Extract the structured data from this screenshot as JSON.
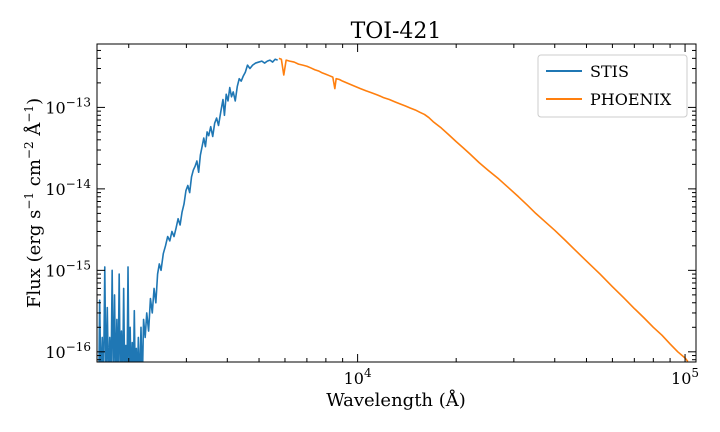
{
  "chart_data": {
    "type": "line",
    "title": "TOI-421",
    "xlabel": "Wavelength (Å)",
    "ylabel_parts": {
      "prefix": "Flux (erg s",
      "exp1": "−1",
      "mid1": " cm",
      "exp2": "−2",
      "mid2": " Å",
      "exp3": "−1",
      "suffix": ")"
    },
    "x_scale": "log",
    "y_scale": "log",
    "xlim": [
      1600,
      108000
    ],
    "ylim": [
      7.5e-17,
      6e-13
    ],
    "x_ticks": [
      {
        "value": 10000,
        "base": "10",
        "exp": "4"
      },
      {
        "value": 100000,
        "base": "10",
        "exp": "5"
      }
    ],
    "y_ticks": [
      {
        "value": 1e-16,
        "base": "10",
        "exp": "−16"
      },
      {
        "value": 1e-15,
        "base": "10",
        "exp": "−15"
      },
      {
        "value": 1e-14,
        "base": "10",
        "exp": "−14"
      },
      {
        "value": 1e-13,
        "base": "10",
        "exp": "−13"
      }
    ],
    "grid": false,
    "legend": {
      "position": "top-right"
    },
    "series": [
      {
        "name": "STIS",
        "color": "#1f77b4",
        "points": [
          [
            1620,
            3e-17
          ],
          [
            1630,
            4.3e-16
          ],
          [
            1645,
            2e-17
          ],
          [
            1660,
            1.5e-16
          ],
          [
            1675,
            3e-17
          ],
          [
            1690,
            1.1e-15
          ],
          [
            1705,
            2e-17
          ],
          [
            1720,
            3.5e-16
          ],
          [
            1735,
            2.5e-17
          ],
          [
            1750,
            1.5e-16
          ],
          [
            1765,
            2e-17
          ],
          [
            1780,
            1e-15
          ],
          [
            1795,
            3e-17
          ],
          [
            1810,
            5e-16
          ],
          [
            1825,
            2e-17
          ],
          [
            1840,
            2.5e-16
          ],
          [
            1855,
            2.5e-17
          ],
          [
            1870,
            9e-16
          ],
          [
            1885,
            3e-17
          ],
          [
            1900,
            1.8e-16
          ],
          [
            1915,
            3e-17
          ],
          [
            1930,
            6e-16
          ],
          [
            1945,
            3e-17
          ],
          [
            1960,
            1.2e-16
          ],
          [
            1975,
            2.5e-17
          ],
          [
            1990,
            1.1e-15
          ],
          [
            2005,
            4e-17
          ],
          [
            2020,
            2e-16
          ],
          [
            2035,
            3e-17
          ],
          [
            2050,
            1.3e-16
          ],
          [
            2065,
            3e-17
          ],
          [
            2080,
            3.2e-16
          ],
          [
            2095,
            3.5e-17
          ],
          [
            2110,
            1.1e-16
          ],
          [
            2125,
            2.5e-17
          ],
          [
            2140,
            1.5e-16
          ],
          [
            2160,
            3e-17
          ],
          [
            2180,
            2e-16
          ],
          [
            2200,
            4e-17
          ],
          [
            2220,
            2.5e-16
          ],
          [
            2245,
            1.5e-16
          ],
          [
            2270,
            3e-16
          ],
          [
            2300,
            1.8e-16
          ],
          [
            2330,
            4.5e-16
          ],
          [
            2360,
            3e-16
          ],
          [
            2390,
            6e-16
          ],
          [
            2420,
            4e-16
          ],
          [
            2450,
            9e-16
          ],
          [
            2480,
            1.2e-15
          ],
          [
            2510,
            1e-15
          ],
          [
            2550,
            1.6e-15
          ],
          [
            2590,
            2e-15
          ],
          [
            2630,
            2.6e-15
          ],
          [
            2670,
            2.3e-15
          ],
          [
            2710,
            3e-15
          ],
          [
            2750,
            2.6e-15
          ],
          [
            2790,
            3.3e-15
          ],
          [
            2830,
            4.3e-15
          ],
          [
            2870,
            3.6e-15
          ],
          [
            2910,
            5.2e-15
          ],
          [
            2950,
            6.5e-15
          ],
          [
            2990,
            9.5e-15
          ],
          [
            3030,
            1.1e-14
          ],
          [
            3070,
            9e-15
          ],
          [
            3110,
            1.4e-14
          ],
          [
            3150,
            1.7e-14
          ],
          [
            3190,
            1.9e-14
          ],
          [
            3230,
            2.2e-14
          ],
          [
            3270,
            1.6e-14
          ],
          [
            3310,
            2.6e-14
          ],
          [
            3350,
            3.3e-14
          ],
          [
            3390,
            4.2e-14
          ],
          [
            3430,
            3.3e-14
          ],
          [
            3470,
            5e-14
          ],
          [
            3510,
            4.5e-14
          ],
          [
            3560,
            5.8e-14
          ],
          [
            3610,
            4.4e-14
          ],
          [
            3660,
            6.4e-14
          ],
          [
            3710,
            7.4e-14
          ],
          [
            3760,
            6e-14
          ],
          [
            3820,
            8.8e-14
          ],
          [
            3880,
            1.25e-13
          ],
          [
            3920,
            8e-14
          ],
          [
            3970,
            1.45e-13
          ],
          [
            4020,
            1.2e-13
          ],
          [
            4070,
            1.75e-13
          ],
          [
            4120,
            1.35e-13
          ],
          [
            4170,
            1.55e-13
          ],
          [
            4230,
            1.2e-13
          ],
          [
            4290,
            1.8e-13
          ],
          [
            4350,
            2.25e-13
          ],
          [
            4410,
            2.1e-13
          ],
          [
            4470,
            2.4e-13
          ],
          [
            4540,
            2.7e-13
          ],
          [
            4610,
            3.3e-13
          ],
          [
            4690,
            3e-13
          ],
          [
            4780,
            3.3e-13
          ],
          [
            4880,
            3.5e-13
          ],
          [
            4990,
            3.6e-13
          ],
          [
            5100,
            3.7e-13
          ],
          [
            5200,
            3.5e-13
          ],
          [
            5300,
            3.7e-13
          ],
          [
            5400,
            3.8e-13
          ],
          [
            5500,
            3.6e-13
          ],
          [
            5600,
            3.9e-13
          ],
          [
            5700,
            3.8e-13
          ]
        ]
      },
      {
        "name": "PHOENIX",
        "color": "#ff7f0e",
        "points": [
          [
            5750,
            4e-13
          ],
          [
            5850,
            3.9e-13
          ],
          [
            5950,
            2.5e-13
          ],
          [
            6050,
            3.8e-13
          ],
          [
            6200,
            3.7e-13
          ],
          [
            6400,
            3.6e-13
          ],
          [
            6600,
            3.4e-13
          ],
          [
            6800,
            3.3e-13
          ],
          [
            7000,
            3.2e-13
          ],
          [
            7200,
            3.05e-13
          ],
          [
            7400,
            2.9e-13
          ],
          [
            7600,
            2.8e-13
          ],
          [
            7800,
            2.65e-13
          ],
          [
            8000,
            2.55e-13
          ],
          [
            8200,
            2.45e-13
          ],
          [
            8400,
            2.35e-13
          ],
          [
            8520,
            1.7e-13
          ],
          [
            8600,
            2.25e-13
          ],
          [
            8800,
            2.2e-13
          ],
          [
            9000,
            2.1e-13
          ],
          [
            9400,
            1.95e-13
          ],
          [
            9800,
            1.82e-13
          ],
          [
            10200,
            1.7e-13
          ],
          [
            10600,
            1.6e-13
          ],
          [
            11000,
            1.52e-13
          ],
          [
            11500,
            1.42e-13
          ],
          [
            12000,
            1.32e-13
          ],
          [
            12500,
            1.25e-13
          ],
          [
            13000,
            1.17e-13
          ],
          [
            13500,
            1.1e-13
          ],
          [
            14000,
            1.04e-13
          ],
          [
            14500,
            9.8e-14
          ],
          [
            15000,
            9.3e-14
          ],
          [
            15500,
            8.7e-14
          ],
          [
            16000,
            8.2e-14
          ],
          [
            16500,
            7.5e-14
          ],
          [
            17000,
            6.7e-14
          ],
          [
            18000,
            5.6e-14
          ],
          [
            19000,
            4.6e-14
          ],
          [
            20000,
            3.8e-14
          ],
          [
            21000,
            3.2e-14
          ],
          [
            22000,
            2.7e-14
          ],
          [
            23500,
            2.1e-14
          ],
          [
            25000,
            1.7e-14
          ],
          [
            27000,
            1.32e-14
          ],
          [
            29000,
            1.02e-14
          ],
          [
            31000,
            8e-15
          ],
          [
            33000,
            6.3e-15
          ],
          [
            35000,
            5e-15
          ],
          [
            37000,
            4.1e-15
          ],
          [
            40000,
            3.1e-15
          ],
          [
            43000,
            2.35e-15
          ],
          [
            46000,
            1.8e-15
          ],
          [
            50000,
            1.3e-15
          ],
          [
            55000,
            9e-16
          ],
          [
            60000,
            6.3e-16
          ],
          [
            65000,
            4.6e-16
          ],
          [
            70000,
            3.4e-16
          ],
          [
            75000,
            2.6e-16
          ],
          [
            80000,
            2e-16
          ],
          [
            85000,
            1.6e-16
          ],
          [
            90000,
            1.25e-16
          ],
          [
            95000,
            1e-16
          ],
          [
            100000,
            8.4e-17
          ],
          [
            102000,
            7.6e-17
          ]
        ]
      }
    ]
  }
}
